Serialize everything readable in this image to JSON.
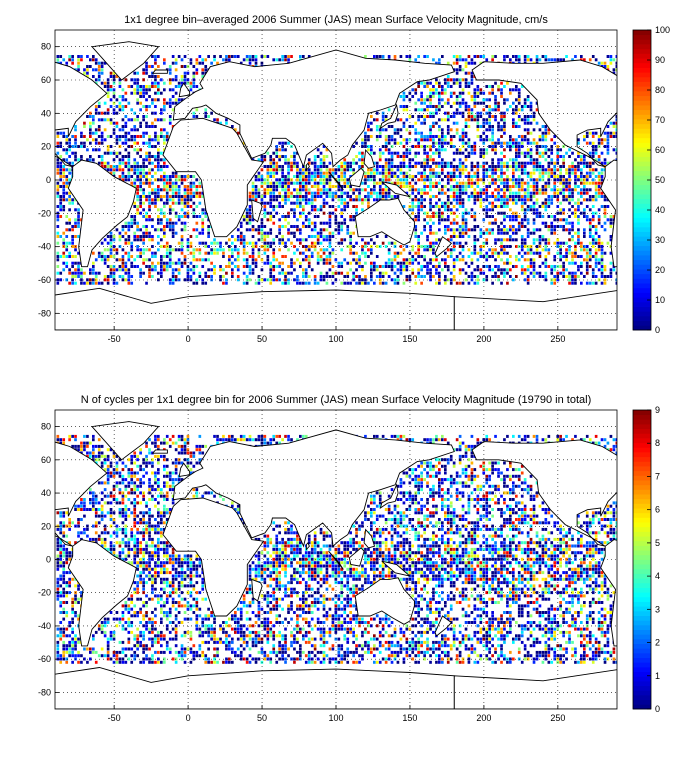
{
  "chart_data": [
    {
      "type": "heatmap",
      "title": "1x1 degree bin–averaged 2006 Summer (JAS) mean Surface Velocity Magnitude, cm/s",
      "xlabel": "",
      "ylabel": "",
      "xlim": [
        -90,
        290
      ],
      "ylim": [
        -90,
        90
      ],
      "xticks": [
        -50,
        0,
        50,
        100,
        150,
        200,
        250
      ],
      "yticks": [
        -80,
        -60,
        -40,
        -20,
        0,
        20,
        40,
        60,
        80
      ],
      "grid": true,
      "colormap": "jet",
      "colorbar": {
        "min": 0,
        "max": 100,
        "ticks": [
          0,
          10,
          20,
          30,
          40,
          50,
          60,
          70,
          80,
          90,
          100
        ]
      },
      "seed": 11,
      "band_bias": 0.35
    },
    {
      "type": "heatmap",
      "title": "N of cycles per 1x1 degree bin for 2006 Summer (JAS) mean Surface Velocity Magnitude (19790 in total)",
      "xlabel": "",
      "ylabel": "",
      "xlim": [
        -90,
        290
      ],
      "ylim": [
        -90,
        90
      ],
      "xticks": [
        -50,
        0,
        50,
        100,
        150,
        200,
        250
      ],
      "yticks": [
        -80,
        -60,
        -40,
        -20,
        0,
        20,
        40,
        60,
        80
      ],
      "grid": true,
      "colormap": "jet",
      "colorbar": {
        "min": 0,
        "max": 9,
        "ticks": [
          0,
          1,
          2,
          3,
          4,
          5,
          6,
          7,
          8,
          9
        ]
      },
      "seed": 29,
      "band_bias": 0.1
    }
  ]
}
